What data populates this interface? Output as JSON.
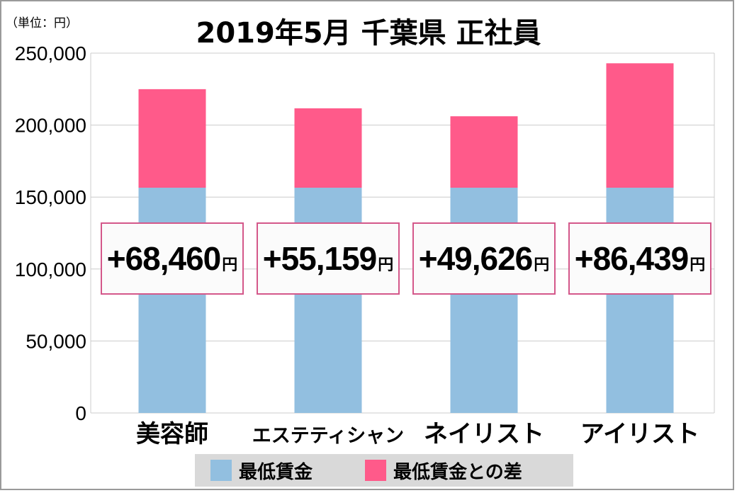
{
  "title": "2019年5月 千葉県 正社員",
  "unit_label": "（単位：円）",
  "colors": {
    "base": "#92bfe0",
    "diff": "#ff5a8a",
    "grid": "#cccccc"
  },
  "callouts": [
    {
      "value": "+68,460",
      "unit": "円"
    },
    {
      "value": "+55,159",
      "unit": "円"
    },
    {
      "value": "+49,626",
      "unit": "円"
    },
    {
      "value": "+86,439",
      "unit": "円"
    }
  ],
  "chart_data": {
    "type": "bar",
    "stacked": true,
    "categories": [
      "美容師",
      "エステティシャン",
      "ネイリスト",
      "アイリスト"
    ],
    "series": [
      {
        "name": "最低賃金",
        "values": [
          156500,
          156500,
          156500,
          156500
        ]
      },
      {
        "name": "最低賃金との差",
        "values": [
          68460,
          55159,
          49626,
          86439
        ]
      }
    ],
    "ylim": [
      0,
      250000
    ],
    "yticks": [
      "0",
      "50,000",
      "100,000",
      "150,000",
      "200,000",
      "250,000"
    ],
    "ytick_values": [
      0,
      50000,
      100000,
      150000,
      200000,
      250000
    ],
    "grid": true,
    "legend_position": "bottom"
  }
}
